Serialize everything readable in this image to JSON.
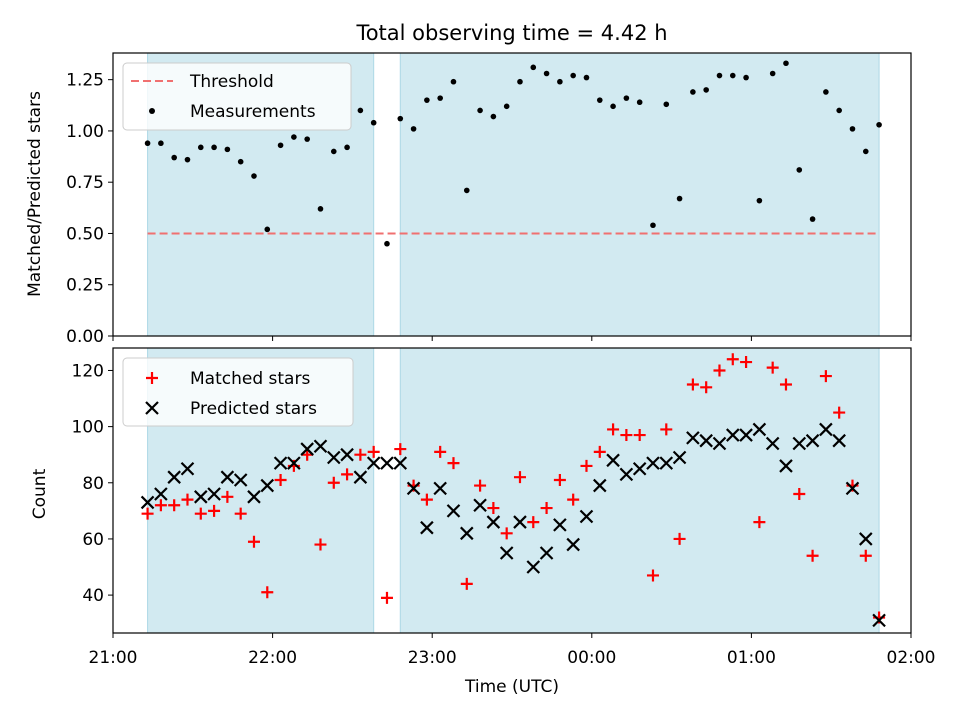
{
  "chart_data": {
    "type": "scatter",
    "title": "Total observing time = 4.42 h",
    "xlabel": "Time (UTC)",
    "xlim": [
      "21:00",
      "02:00"
    ],
    "x_ticks": [
      "21:00",
      "22:00",
      "23:00",
      "00:00",
      "01:00",
      "02:00"
    ],
    "shaded_intervals": [
      [
        "21:13",
        "22:38"
      ],
      [
        "22:48",
        "01:48"
      ]
    ],
    "top": {
      "ylabel": "Matched/Predicted stars",
      "ylim": [
        0,
        1.38
      ],
      "y_ticks": [
        "0.00",
        "0.25",
        "0.50",
        "0.75",
        "1.00",
        "1.25"
      ],
      "legend": {
        "placement": "top-left",
        "entries": [
          "Threshold",
          "Measurements"
        ]
      },
      "threshold": {
        "name": "Threshold",
        "value": 0.5,
        "color": "#f07070"
      },
      "series": [
        {
          "name": "Measurements",
          "color": "#000000",
          "x": [
            "21:13",
            "21:18",
            "21:23",
            "21:28",
            "21:33",
            "21:38",
            "21:43",
            "21:48",
            "21:53",
            "21:58",
            "22:03",
            "22:08",
            "22:13",
            "22:18",
            "22:23",
            "22:28",
            "22:33",
            "22:38",
            "22:43",
            "22:48",
            "22:53",
            "22:58",
            "23:03",
            "23:08",
            "23:13",
            "23:18",
            "23:23",
            "23:28",
            "23:33",
            "23:38",
            "23:43",
            "23:48",
            "23:53",
            "23:58",
            "00:03",
            "00:08",
            "00:13",
            "00:18",
            "00:23",
            "00:28",
            "00:33",
            "00:38",
            "00:43",
            "00:48",
            "00:53",
            "00:58",
            "01:03",
            "01:08",
            "01:13",
            "01:18",
            "01:23",
            "01:28",
            "01:33",
            "01:38",
            "01:43",
            "01:48"
          ],
          "y": [
            0.94,
            0.94,
            0.87,
            0.86,
            0.92,
            0.92,
            0.91,
            0.85,
            0.78,
            0.52,
            0.93,
            0.97,
            0.96,
            0.62,
            0.9,
            0.92,
            1.1,
            1.04,
            0.45,
            1.06,
            1.01,
            1.15,
            1.16,
            1.24,
            0.71,
            1.1,
            1.07,
            1.12,
            1.24,
            1.31,
            1.28,
            1.24,
            1.27,
            1.26,
            1.15,
            1.12,
            1.16,
            1.14,
            0.54,
            1.13,
            0.67,
            1.19,
            1.2,
            1.27,
            1.27,
            1.26,
            0.66,
            1.28,
            1.33,
            0.81,
            0.57,
            1.19,
            1.1,
            1.01,
            0.9,
            1.03
          ]
        }
      ]
    },
    "bottom": {
      "ylabel": "Count",
      "ylim": [
        26.5,
        128
      ],
      "y_ticks": [
        "40",
        "60",
        "80",
        "100",
        "120"
      ],
      "legend": {
        "placement": "top-left",
        "entries": [
          "Matched stars",
          "Predicted stars"
        ]
      },
      "series": [
        {
          "name": "Matched stars",
          "marker": "+",
          "color": "#ff0000",
          "x": [
            "21:13",
            "21:18",
            "21:23",
            "21:28",
            "21:33",
            "21:38",
            "21:43",
            "21:48",
            "21:53",
            "21:58",
            "22:03",
            "22:08",
            "22:13",
            "22:18",
            "22:23",
            "22:28",
            "22:33",
            "22:38",
            "22:43",
            "22:48",
            "22:53",
            "22:58",
            "23:03",
            "23:08",
            "23:13",
            "23:18",
            "23:23",
            "23:28",
            "23:33",
            "23:38",
            "23:43",
            "23:48",
            "23:53",
            "23:58",
            "00:03",
            "00:08",
            "00:13",
            "00:18",
            "00:23",
            "00:28",
            "00:33",
            "00:38",
            "00:43",
            "00:48",
            "00:53",
            "00:58",
            "01:03",
            "01:08",
            "01:13",
            "01:18",
            "01:23",
            "01:28",
            "01:33",
            "01:38",
            "01:43",
            "01:48"
          ],
          "y": [
            69,
            72,
            72,
            74,
            69,
            70,
            75,
            69,
            59,
            41,
            81,
            86,
            90,
            58,
            80,
            83,
            90,
            91,
            39,
            92,
            79,
            74,
            91,
            87,
            44,
            79,
            71,
            62,
            82,
            66,
            71,
            81,
            74,
            86,
            91,
            99,
            97,
            97,
            47,
            99,
            60,
            115,
            114,
            120,
            124,
            123,
            66,
            121,
            115,
            76,
            54,
            118,
            105,
            79,
            54,
            32
          ]
        },
        {
          "name": "Predicted stars",
          "marker": "x",
          "color": "#000000",
          "x": [
            "21:13",
            "21:18",
            "21:23",
            "21:28",
            "21:33",
            "21:38",
            "21:43",
            "21:48",
            "21:53",
            "21:58",
            "22:03",
            "22:08",
            "22:13",
            "22:18",
            "22:23",
            "22:28",
            "22:33",
            "22:38",
            "22:43",
            "22:48",
            "22:53",
            "22:58",
            "23:03",
            "23:08",
            "23:13",
            "23:18",
            "23:23",
            "23:28",
            "23:33",
            "23:38",
            "23:43",
            "23:48",
            "23:53",
            "23:58",
            "00:03",
            "00:08",
            "00:13",
            "00:18",
            "00:23",
            "00:28",
            "00:33",
            "00:38",
            "00:43",
            "00:48",
            "00:53",
            "00:58",
            "01:03",
            "01:08",
            "01:13",
            "01:18",
            "01:23",
            "01:28",
            "01:33",
            "01:38",
            "01:43",
            "01:48"
          ],
          "y": [
            73,
            76,
            82,
            85,
            75,
            76,
            82,
            81,
            75,
            79,
            87,
            87,
            92,
            93,
            89,
            90,
            82,
            87,
            87,
            87,
            78,
            64,
            78,
            70,
            62,
            72,
            66,
            55,
            66,
            50,
            55,
            65,
            58,
            68,
            79,
            88,
            83,
            85,
            87,
            87,
            89,
            96,
            95,
            94,
            97,
            97,
            99,
            94,
            86,
            94,
            95,
            99,
            95,
            78,
            60,
            31
          ]
        }
      ]
    },
    "colors": {
      "shade": "#d2eaf1",
      "shade_edge": "#add8e6"
    }
  }
}
